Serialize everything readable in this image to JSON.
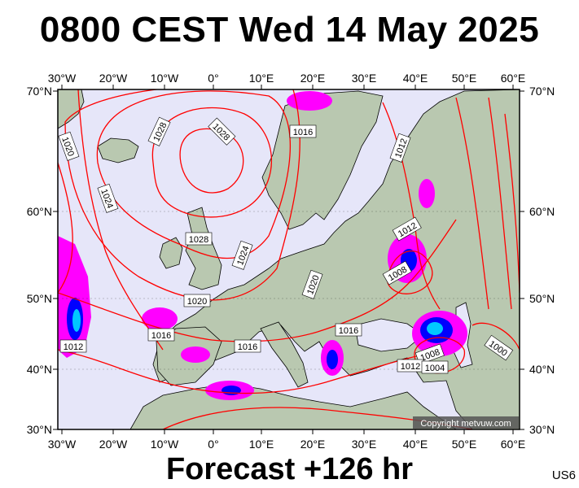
{
  "title": "0800 CEST Wed 14 May 2025",
  "footer": "Forecast +126 hr",
  "model_id": "US6",
  "copyright": "Copyright metvuw.com",
  "lon_labels": [
    "30°W",
    "20°W",
    "10°W",
    "0°",
    "10°E",
    "20°E",
    "30°E",
    "40°E",
    "50°E",
    "60°E"
  ],
  "lat_labels": [
    "70°N",
    "60°N",
    "50°N",
    "40°N",
    "30°N"
  ],
  "isobar_labels": [
    "1028",
    "1028",
    "1020",
    "1024",
    "1016",
    "1012",
    "1028",
    "1024",
    "1012",
    "1020",
    "1020",
    "1008",
    "1016",
    "1016",
    "1016",
    "1012",
    "1008",
    "1012",
    "1004",
    "1000"
  ],
  "colors": {
    "ocean": "#e6e6f9",
    "land": "#b9c8b0",
    "isobar": "#ff0000",
    "precip_light": "#ff00ff",
    "precip_mid": "#0000ff",
    "precip_heavy": "#00c8ff",
    "precip_core": "#00ff00"
  }
}
